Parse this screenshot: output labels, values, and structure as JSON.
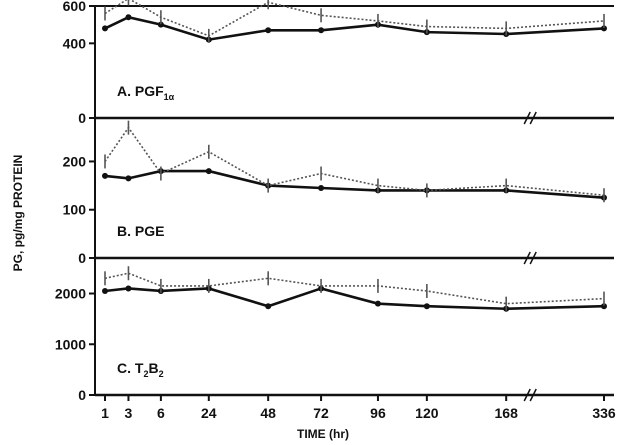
{
  "chart_data": [
    {
      "type": "line",
      "panel_label": "A. PGF",
      "panel_label_sub": "1α",
      "x": [
        1,
        3,
        6,
        24,
        48,
        72,
        96,
        120,
        168,
        336
      ],
      "ylim": [
        0,
        600
      ],
      "yticks": [
        "600",
        "400",
        "0"
      ],
      "ytick_values": [
        600,
        400,
        0
      ],
      "series": [
        {
          "style": "solid",
          "values": [
            480,
            540,
            500,
            420,
            470,
            470,
            500,
            460,
            450,
            480
          ]
        },
        {
          "style": "dotted",
          "values": [
            560,
            640,
            540,
            440,
            620,
            550,
            520,
            490,
            480,
            520
          ]
        }
      ]
    },
    {
      "type": "line",
      "panel_label": "B. PGE",
      "panel_label_sub": "",
      "x": [
        1,
        3,
        6,
        24,
        48,
        72,
        96,
        120,
        168,
        336
      ],
      "ylim": [
        0,
        290
      ],
      "yticks": [
        "200",
        "100",
        "0"
      ],
      "ytick_values": [
        200,
        100,
        0
      ],
      "series": [
        {
          "style": "solid",
          "values": [
            170,
            165,
            180,
            180,
            150,
            145,
            140,
            140,
            140,
            125
          ]
        },
        {
          "style": "dotted",
          "values": [
            200,
            270,
            175,
            220,
            150,
            175,
            150,
            140,
            150,
            130
          ]
        }
      ]
    },
    {
      "type": "line",
      "panel_label": "C. T",
      "panel_label_sub": "2",
      "panel_label_suffix": "B",
      "panel_label_suffix_sub": "2",
      "x": [
        1,
        3,
        6,
        24,
        48,
        72,
        96,
        120,
        168,
        336
      ],
      "ylim": [
        0,
        2700
      ],
      "yticks": [
        "2000",
        "1000",
        "0"
      ],
      "ytick_values": [
        2000,
        1000,
        0
      ],
      "series": [
        {
          "style": "solid",
          "values": [
            2050,
            2100,
            2050,
            2100,
            1750,
            2100,
            1800,
            1750,
            1700,
            1750
          ]
        },
        {
          "style": "dotted",
          "values": [
            2300,
            2400,
            2150,
            2150,
            2300,
            2150,
            2150,
            2050,
            1800,
            1900
          ]
        }
      ]
    }
  ],
  "xaxis": {
    "tick_values": [
      1,
      3,
      6,
      24,
      48,
      72,
      96,
      120,
      168,
      336
    ],
    "tick_labels": [
      "1",
      "3",
      "6",
      "24",
      "48",
      "72",
      "96",
      "120",
      "168",
      "336"
    ],
    "label": "TIME (hr)"
  },
  "ylabel": "PG, pg/mg PROTEIN",
  "colors": {
    "ink": "#111111",
    "dotted": "#555555"
  }
}
